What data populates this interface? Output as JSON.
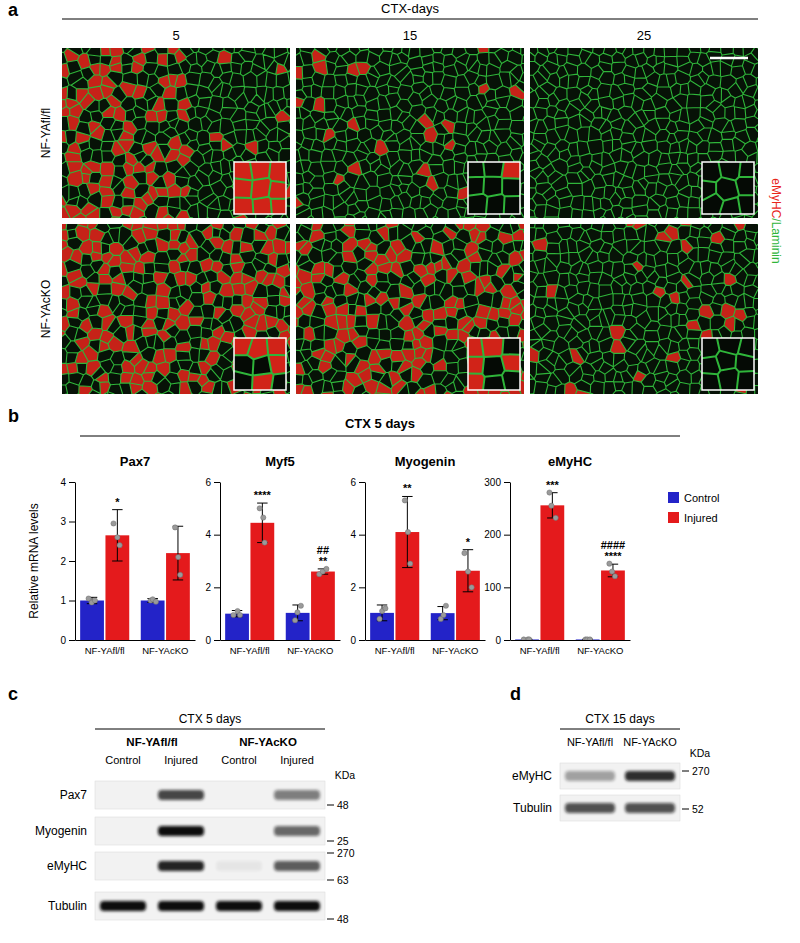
{
  "panels": {
    "a": {
      "label": "a",
      "header": "CTX-days",
      "columns": [
        5,
        15,
        25
      ],
      "rows": [
        "NF-YAfl/fl",
        "NF-YAcKO"
      ],
      "stain": [
        {
          "text": "eMyHC",
          "color": "#e8261b"
        },
        {
          "text": "/Laminin",
          "color": "#2fb53a"
        }
      ]
    },
    "b": {
      "label": "b",
      "header": "CTX 5 days",
      "y_label": "Relative mRNA levels"
    },
    "c": {
      "label": "c",
      "header": "CTX 5 days",
      "groups": [
        "NF-YAfl/fl",
        "NF-YAcKO"
      ],
      "lanes": [
        "Control",
        "Injured",
        "Control",
        "Injured"
      ],
      "unit": "KDa",
      "rows": [
        {
          "name": "Pax7",
          "intensity": [
            0,
            0.75,
            0,
            0.5
          ]
        },
        {
          "name": "Myogenin",
          "intensity": [
            0,
            1,
            0,
            0.6
          ]
        },
        {
          "name": "eMyHC",
          "intensity": [
            0,
            0.9,
            0.05,
            0.65
          ]
        },
        {
          "name": "Tubulin",
          "intensity": [
            1,
            1,
            1,
            1
          ]
        }
      ],
      "markers": [
        48,
        25,
        270,
        63,
        48
      ]
    },
    "d": {
      "label": "d",
      "header": "CTX 15 days",
      "lanes": [
        "NF-YAfl/fl",
        "NF-YAcKO"
      ],
      "unit": "KDa",
      "rows": [
        {
          "name": "eMyHC",
          "intensity": [
            0.35,
            0.85
          ]
        },
        {
          "name": "Tubulin",
          "intensity": [
            0.7,
            0.7
          ]
        }
      ],
      "markers": [
        270,
        52
      ]
    }
  },
  "chart_data": [
    {
      "type": "bar",
      "title": "Pax7",
      "categories": [
        "NF-YAfl/fl",
        "NF-YAcKO"
      ],
      "ylim": [
        0,
        4
      ],
      "yticks": [
        0,
        1,
        2,
        3,
        4
      ],
      "series": [
        {
          "name": "Control",
          "color": "#2323c8",
          "values": [
            1.0,
            1.0
          ],
          "errors": [
            0.08,
            0.05
          ],
          "points": [
            [
              1.05,
              0.95,
              1.0
            ],
            [
              1.0,
              1.03,
              0.97
            ]
          ],
          "significance": [
            [],
            []
          ]
        },
        {
          "name": "Injured",
          "color": "#e41a1c",
          "values": [
            2.65,
            2.2
          ],
          "errors": [
            0.65,
            0.68
          ],
          "points": [
            [
              2.95,
              2.6,
              2.4
            ],
            [
              2.85,
              2.1,
              1.65
            ]
          ],
          "significance": [
            [
              "*"
            ],
            []
          ]
        }
      ]
    },
    {
      "type": "bar",
      "title": "Myf5",
      "categories": [
        "NF-YAfl/fl",
        "NF-YAcKO"
      ],
      "ylim": [
        0,
        6
      ],
      "yticks": [
        0,
        2,
        4,
        6
      ],
      "series": [
        {
          "name": "Control",
          "color": "#2323c8",
          "values": [
            1.0,
            1.03
          ],
          "errors": [
            0.12,
            0.3
          ],
          "points": [
            [
              0.95,
              1.1,
              0.95
            ],
            [
              0.75,
              1.05,
              1.3
            ]
          ],
          "significance": [
            [],
            []
          ]
        },
        {
          "name": "Injured",
          "color": "#e41a1c",
          "values": [
            4.45,
            2.6
          ],
          "errors": [
            0.75,
            0.1
          ],
          "points": [
            [
              5.0,
              4.65,
              3.7
            ],
            [
              2.5,
              2.6,
              2.7
            ]
          ],
          "significance": [
            [
              "****"
            ],
            [
              "##",
              "**"
            ]
          ]
        }
      ]
    },
    {
      "type": "bar",
      "title": "Myogenin",
      "categories": [
        "NF-YAfl/fl",
        "NF-YAcKO"
      ],
      "ylim": [
        0,
        6
      ],
      "yticks": [
        0,
        2,
        4,
        6
      ],
      "series": [
        {
          "name": "Control",
          "color": "#2323c8",
          "values": [
            1.03,
            1.02
          ],
          "errors": [
            0.3,
            0.25
          ],
          "points": [
            [
              0.8,
              1.1,
              1.2
            ],
            [
              0.8,
              0.95,
              1.3
            ]
          ],
          "significance": [
            [],
            []
          ]
        },
        {
          "name": "Injured",
          "color": "#e41a1c",
          "values": [
            4.1,
            2.63
          ],
          "errors": [
            1.35,
            0.8
          ],
          "points": [
            [
              5.3,
              4.1,
              2.9
            ],
            [
              3.3,
              2.6,
              2.0
            ]
          ],
          "significance": [
            [
              "**"
            ],
            [
              "*"
            ]
          ]
        }
      ]
    },
    {
      "type": "bar",
      "title": "eMyHC",
      "categories": [
        "NF-YAfl/fl",
        "NF-YAcKO"
      ],
      "ylim": [
        0,
        300
      ],
      "yticks": [
        0,
        100,
        200,
        300
      ],
      "series": [
        {
          "name": "Control",
          "color": "#2323c8",
          "values": [
            1,
            1
          ],
          "errors": [
            0.5,
            0.5
          ],
          "points": [
            [
              1,
              1,
              1
            ],
            [
              1,
              1,
              1
            ]
          ],
          "significance": [
            [],
            []
          ]
        },
        {
          "name": "Injured",
          "color": "#e41a1c",
          "values": [
            255.7,
            132
          ],
          "errors": [
            24,
            12
          ],
          "points": [
            [
              280,
              255,
              232
            ],
            [
              145,
              130,
              121
            ]
          ],
          "significance": [
            [
              "***"
            ],
            [
              "####",
              "****"
            ]
          ]
        }
      ]
    }
  ]
}
